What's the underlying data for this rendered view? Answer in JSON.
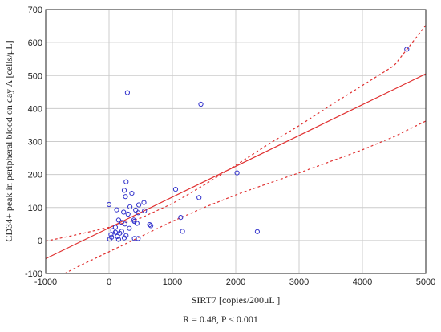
{
  "chart_data": {
    "type": "scatter",
    "xlabel": "SIRT7 [copies/200μL ]",
    "ylabel": "CD34+ peak in peripheral blood on day A [cells/μL]",
    "annotation": "R = 0.48, P < 0.001",
    "xlim": [
      -1000,
      5000
    ],
    "ylim": [
      -100,
      700
    ],
    "xticks": [
      -1000,
      0,
      1000,
      2000,
      3000,
      4000,
      5000
    ],
    "yticks": [
      -100,
      0,
      100,
      200,
      300,
      400,
      500,
      600,
      700
    ],
    "grid": true,
    "point_color": "#3333cc",
    "line_color": "#e03030",
    "regression_line": {
      "x": [
        -1000,
        5000
      ],
      "y": [
        -55,
        505
      ]
    },
    "confidence_band_upper": {
      "x": [
        -1000,
        -500,
        0,
        500,
        1000,
        1500,
        2000,
        2500,
        3000,
        3500,
        4000,
        4500,
        5000
      ],
      "y": [
        -2,
        18,
        40,
        68,
        112,
        168,
        228,
        290,
        348,
        410,
        470,
        530,
        652
      ]
    },
    "confidence_band_lower": {
      "x": [
        -700,
        -500,
        0,
        500,
        1000,
        1500,
        2000,
        2500,
        3000,
        3500,
        4000,
        4500,
        5000
      ],
      "y": [
        -100,
        -80,
        -34,
        12,
        58,
        100,
        138,
        172,
        205,
        240,
        275,
        315,
        362
      ]
    },
    "points": [
      {
        "x": 4700,
        "y": 580
      },
      {
        "x": 290,
        "y": 448
      },
      {
        "x": 1450,
        "y": 413
      },
      {
        "x": 2020,
        "y": 205
      },
      {
        "x": 1050,
        "y": 155
      },
      {
        "x": 1420,
        "y": 130
      },
      {
        "x": 1130,
        "y": 70
      },
      {
        "x": 1160,
        "y": 28
      },
      {
        "x": 2340,
        "y": 27
      },
      {
        "x": 270,
        "y": 178
      },
      {
        "x": 240,
        "y": 152
      },
      {
        "x": 360,
        "y": 143
      },
      {
        "x": 260,
        "y": 133
      },
      {
        "x": 550,
        "y": 115
      },
      {
        "x": 470,
        "y": 108
      },
      {
        "x": 0,
        "y": 109
      },
      {
        "x": 330,
        "y": 102
      },
      {
        "x": 120,
        "y": 93
      },
      {
        "x": 420,
        "y": 92
      },
      {
        "x": 560,
        "y": 90
      },
      {
        "x": 230,
        "y": 86
      },
      {
        "x": 460,
        "y": 84
      },
      {
        "x": 300,
        "y": 80
      },
      {
        "x": 150,
        "y": 62
      },
      {
        "x": 390,
        "y": 62
      },
      {
        "x": 400,
        "y": 58
      },
      {
        "x": 200,
        "y": 55
      },
      {
        "x": 250,
        "y": 50
      },
      {
        "x": 440,
        "y": 52
      },
      {
        "x": 640,
        "y": 48
      },
      {
        "x": 660,
        "y": 45
      },
      {
        "x": 100,
        "y": 40
      },
      {
        "x": 320,
        "y": 37
      },
      {
        "x": 60,
        "y": 30
      },
      {
        "x": 200,
        "y": 28
      },
      {
        "x": 100,
        "y": 25
      },
      {
        "x": 170,
        "y": 22
      },
      {
        "x": 30,
        "y": 18
      },
      {
        "x": 270,
        "y": 15
      },
      {
        "x": 130,
        "y": 12
      },
      {
        "x": 40,
        "y": 10
      },
      {
        "x": 240,
        "y": 8
      },
      {
        "x": 400,
        "y": 6
      },
      {
        "x": 460,
        "y": 6
      },
      {
        "x": 10,
        "y": 4
      },
      {
        "x": 150,
        "y": 3
      }
    ]
  }
}
